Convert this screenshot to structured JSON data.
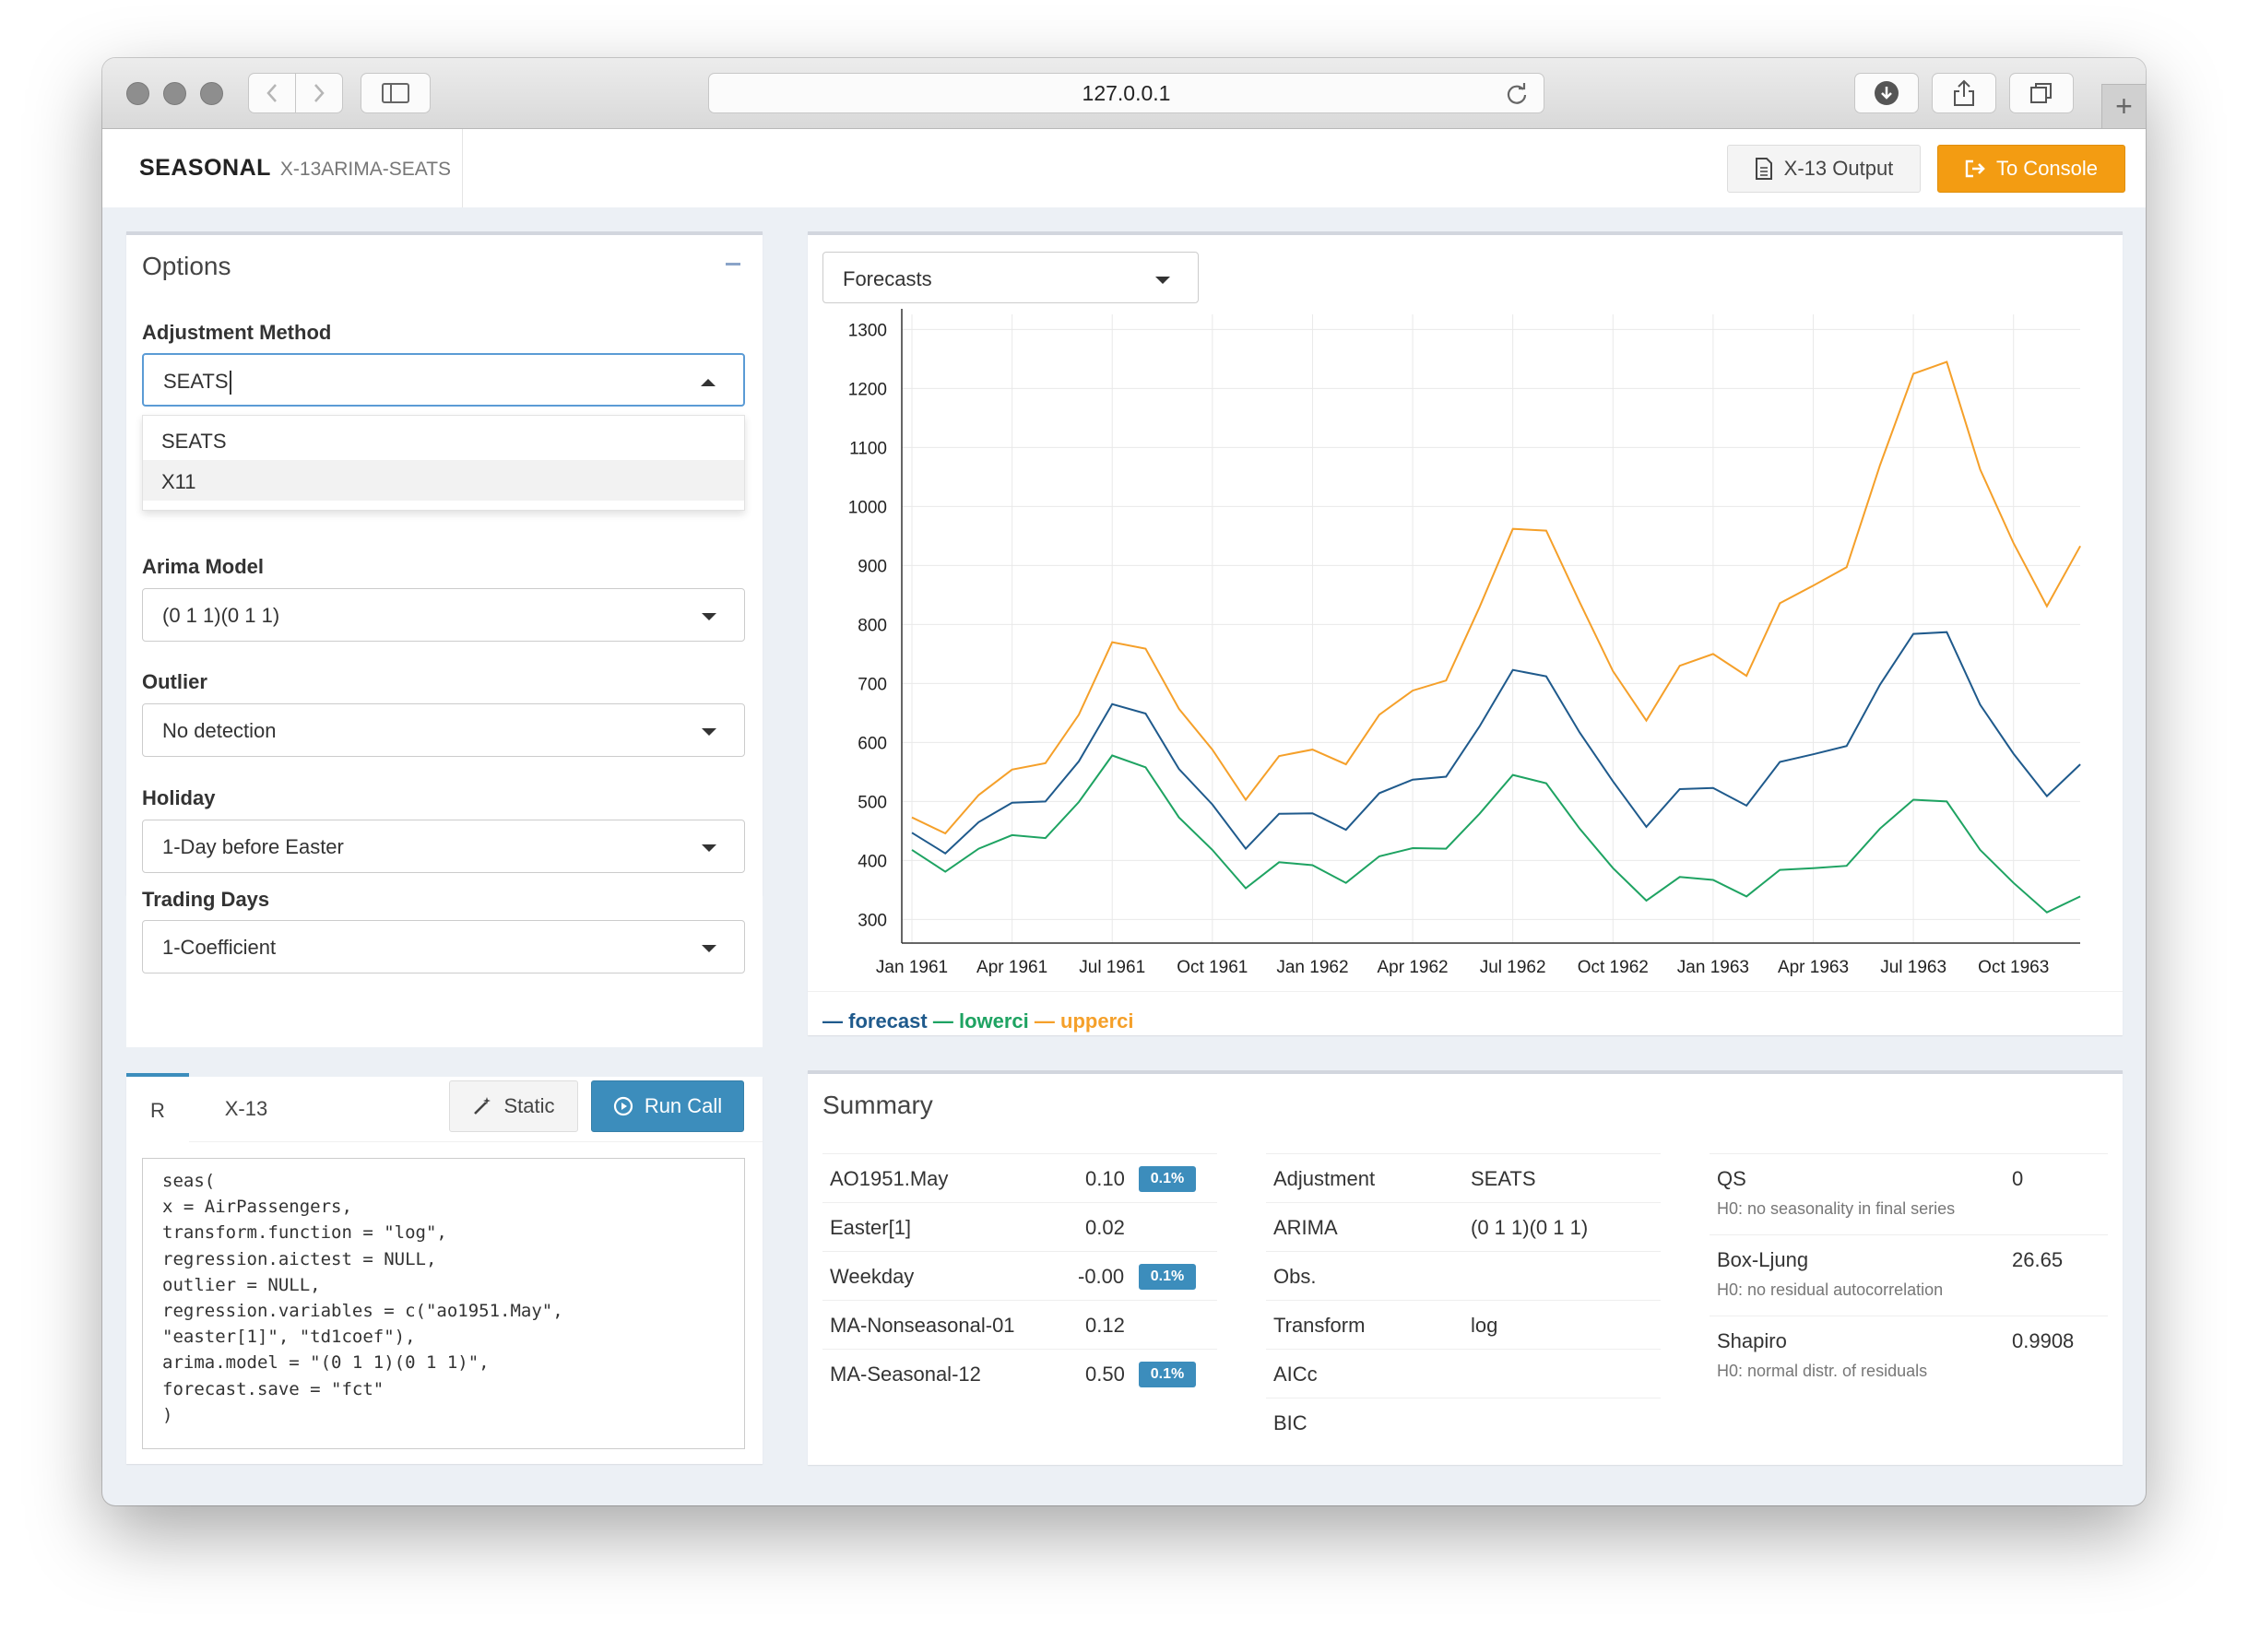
{
  "browser": {
    "url": "127.0.0.1"
  },
  "app": {
    "brand": "SEASONAL",
    "brand_sub": "X-13ARIMA-SEATS",
    "btn_output": "X-13 Output",
    "btn_console": "To Console"
  },
  "options": {
    "title": "Options",
    "adjustment": {
      "label": "Adjustment Method",
      "value": "SEATS",
      "options": [
        "SEATS",
        "X11"
      ]
    },
    "arima": {
      "label": "Arima Model",
      "value": "(0 1 1)(0 1 1)"
    },
    "outlier": {
      "label": "Outlier",
      "value": "No detection"
    },
    "holiday": {
      "label": "Holiday",
      "value": "1-Day before Easter"
    },
    "trading": {
      "label": "Trading Days",
      "value": "1-Coefficient"
    }
  },
  "call": {
    "tab_r": "R",
    "tab_x13": "X-13",
    "btn_static": "Static",
    "btn_run": "Run Call",
    "code_lines": [
      "seas(",
      "x = AirPassengers,",
      "transform.function = \"log\",",
      "regression.aictest = NULL,",
      "outlier = NULL,",
      "regression.variables = c(\"ao1951.May\",",
      "\"easter[1]\", \"td1coef\"),",
      "arima.model = \"(0 1 1)(0 1 1)\",",
      "forecast.save = \"fct\"",
      ")"
    ]
  },
  "view_select": {
    "value": "Forecasts"
  },
  "chart_data": {
    "type": "line",
    "x": [
      "Jan 1961",
      "Feb 1961",
      "Mar 1961",
      "Apr 1961",
      "May 1961",
      "Jun 1961",
      "Jul 1961",
      "Aug 1961",
      "Sep 1961",
      "Oct 1961",
      "Nov 1961",
      "Dec 1961",
      "Jan 1962",
      "Feb 1962",
      "Mar 1962",
      "Apr 1962",
      "May 1962",
      "Jun 1962",
      "Jul 1962",
      "Aug 1962",
      "Sep 1962",
      "Oct 1962",
      "Nov 1962",
      "Dec 1962",
      "Jan 1963",
      "Feb 1963",
      "Mar 1963",
      "Apr 1963",
      "May 1963",
      "Jun 1963",
      "Jul 1963",
      "Aug 1963",
      "Sep 1963",
      "Oct 1963",
      "Nov 1963",
      "Dec 1963"
    ],
    "x_ticks": [
      "Jan 1961",
      "Apr 1961",
      "Jul 1961",
      "Oct 1961",
      "Jan 1962",
      "Apr 1962",
      "Jul 1962",
      "Oct 1962",
      "Jan 1963",
      "Apr 1963",
      "Jul 1963",
      "Oct 1963"
    ],
    "y_ticks": [
      300,
      400,
      500,
      600,
      700,
      800,
      900,
      1000,
      1100,
      1200,
      1300
    ],
    "ylim": [
      260,
      1310
    ],
    "grid": true,
    "legend_position": "bottom-left",
    "series": [
      {
        "name": "forecast",
        "color": "#1f5a8c",
        "values": [
          447,
          412,
          465,
          498,
          500,
          568,
          665,
          649,
          555,
          495,
          420,
          479,
          480,
          452,
          514,
          537,
          542,
          627,
          723,
          712,
          617,
          534,
          457,
          521,
          523,
          493,
          567,
          580,
          594,
          698,
          784,
          787,
          664,
          581,
          509,
          563
        ]
      },
      {
        "name": "lowerci",
        "color": "#1ea362",
        "values": [
          418,
          381,
          420,
          443,
          438,
          499,
          578,
          558,
          473,
          418,
          353,
          397,
          392,
          362,
          407,
          421,
          420,
          479,
          545,
          531,
          454,
          387,
          332,
          372,
          367,
          339,
          384,
          387,
          391,
          454,
          503,
          500,
          418,
          362,
          312,
          339
        ]
      },
      {
        "name": "upperci",
        "color": "#f5a02a",
        "values": [
          473,
          446,
          511,
          554,
          565,
          647,
          770,
          759,
          657,
          588,
          503,
          577,
          588,
          563,
          647,
          688,
          705,
          829,
          962,
          959,
          838,
          721,
          637,
          730,
          750,
          713,
          836,
          866,
          897,
          1070,
          1225,
          1245,
          1063,
          938,
          831,
          933
        ]
      }
    ]
  },
  "summary": {
    "title": "Summary",
    "coefs": [
      {
        "name": "AO1951.May",
        "value": "0.10",
        "badge": "0.1%"
      },
      {
        "name": "Easter[1]",
        "value": "0.02",
        "badge": ""
      },
      {
        "name": "Weekday",
        "value": "-0.00",
        "badge": "0.1%"
      },
      {
        "name": "MA-Nonseasonal-01",
        "value": "0.12",
        "badge": ""
      },
      {
        "name": "MA-Seasonal-12",
        "value": "0.50",
        "badge": "0.1%"
      }
    ],
    "info": [
      {
        "name": "Adjustment",
        "value": "SEATS"
      },
      {
        "name": "ARIMA",
        "value": "(0 1 1)(0 1 1)"
      },
      {
        "name": "Obs.",
        "value": ""
      },
      {
        "name": "Transform",
        "value": "log"
      },
      {
        "name": "AICc",
        "value": ""
      },
      {
        "name": "BIC",
        "value": ""
      }
    ],
    "tests": [
      {
        "name": "QS",
        "value": "0",
        "note": "H0: no seasonality in final series"
      },
      {
        "name": "Box-Ljung",
        "value": "26.65",
        "note": "H0: no residual autocorrelation"
      },
      {
        "name": "Shapiro",
        "value": "0.9908",
        "note": "H0: normal distr. of residuals"
      }
    ]
  }
}
